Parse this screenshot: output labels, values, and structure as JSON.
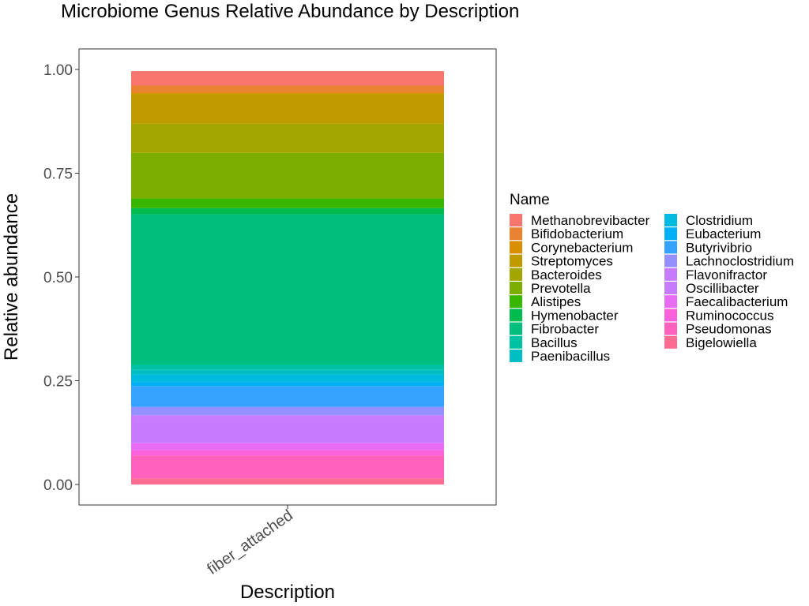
{
  "chart_data": {
    "type": "bar",
    "stacked": true,
    "title": "Microbiome Genus Relative Abundance by Description",
    "xlabel": "Description",
    "ylabel": "Relative abundance",
    "categories": [
      "fiber_attached"
    ],
    "ylim": [
      0,
      1
    ],
    "yticks": [
      "0.00",
      "0.25",
      "0.50",
      "0.75",
      "1.00"
    ],
    "ytick_values": [
      0,
      0.25,
      0.5,
      0.75,
      1.0
    ],
    "grid": false,
    "legend_position": "right",
    "legend_title": "Name",
    "legend_columns": 2,
    "series": [
      {
        "name": "Methanobrevibacter",
        "values": [
          0.035
        ],
        "color": "#F8766D"
      },
      {
        "name": "Bifidobacterium",
        "values": [
          0.017
        ],
        "color": "#EA8331"
      },
      {
        "name": "Corynebacterium",
        "values": [
          0.003
        ],
        "color": "#D89000"
      },
      {
        "name": "Streptomyces",
        "values": [
          0.072
        ],
        "color": "#C09B00"
      },
      {
        "name": "Bacteroides",
        "values": [
          0.07
        ],
        "color": "#A3A500"
      },
      {
        "name": "Prevotella",
        "values": [
          0.11
        ],
        "color": "#7CAE00"
      },
      {
        "name": "Alistipes",
        "values": [
          0.023
        ],
        "color": "#39B600"
      },
      {
        "name": "Hymenobacter",
        "values": [
          0.015
        ],
        "color": "#00BB4E"
      },
      {
        "name": "Fibrobacter",
        "values": [
          0.362
        ],
        "color": "#00BF7D"
      },
      {
        "name": "Bacillus",
        "values": [
          0.012
        ],
        "color": "#00C1A3"
      },
      {
        "name": "Paenibacillus",
        "values": [
          0.012
        ],
        "color": "#00BFC4"
      },
      {
        "name": "Clostridium",
        "values": [
          0.018
        ],
        "color": "#00BAE0"
      },
      {
        "name": "Eubacterium",
        "values": [
          0.01
        ],
        "color": "#00B0F6"
      },
      {
        "name": "Butyrivibrio",
        "values": [
          0.05
        ],
        "color": "#35A2FF"
      },
      {
        "name": "Lachnoclostridium",
        "values": [
          0.02
        ],
        "color": "#9590FF"
      },
      {
        "name": "Flavonifractor",
        "values": [
          0.012
        ],
        "color": "#C77CFF"
      },
      {
        "name": "Oscillibacter",
        "values": [
          0.055
        ],
        "color": "#C77CFF"
      },
      {
        "name": "Faecalibacterium",
        "values": [
          0.018
        ],
        "color": "#E76BF3"
      },
      {
        "name": "Ruminococcus",
        "values": [
          0.012
        ],
        "color": "#FA62DB"
      },
      {
        "name": "Pseudomonas",
        "values": [
          0.055
        ],
        "color": "#FF62BC"
      },
      {
        "name": "Bigelowiella",
        "values": [
          0.015
        ],
        "color": "#FF6C91"
      }
    ]
  }
}
